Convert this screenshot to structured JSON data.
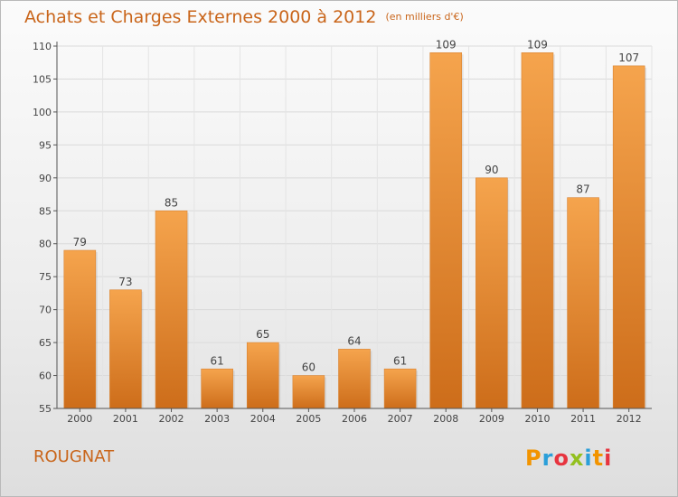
{
  "title": {
    "main": "Achats et Charges Externes 2000 à 2012",
    "unit": "(en milliers d'€)"
  },
  "place": "ROUGNAT",
  "logo": {
    "text": "Proxiti",
    "letters": [
      "P",
      "r",
      "o",
      "x",
      "i",
      "t",
      "i"
    ]
  },
  "colors": {
    "bar_light": "#f5a44d",
    "bar_dark": "#cd6d1a",
    "title": "#c9651a"
  },
  "chart_data": {
    "type": "bar",
    "categories": [
      "2000",
      "2001",
      "2002",
      "2003",
      "2004",
      "2005",
      "2006",
      "2007",
      "2008",
      "2009",
      "2010",
      "2011",
      "2012"
    ],
    "values": [
      79,
      73,
      85,
      61,
      65,
      60,
      64,
      61,
      109,
      90,
      109,
      87,
      107
    ],
    "ylim": [
      55,
      110
    ],
    "yticks": [
      55,
      60,
      65,
      70,
      75,
      80,
      85,
      90,
      95,
      100,
      105,
      110
    ],
    "grid": true,
    "legend": "none"
  }
}
